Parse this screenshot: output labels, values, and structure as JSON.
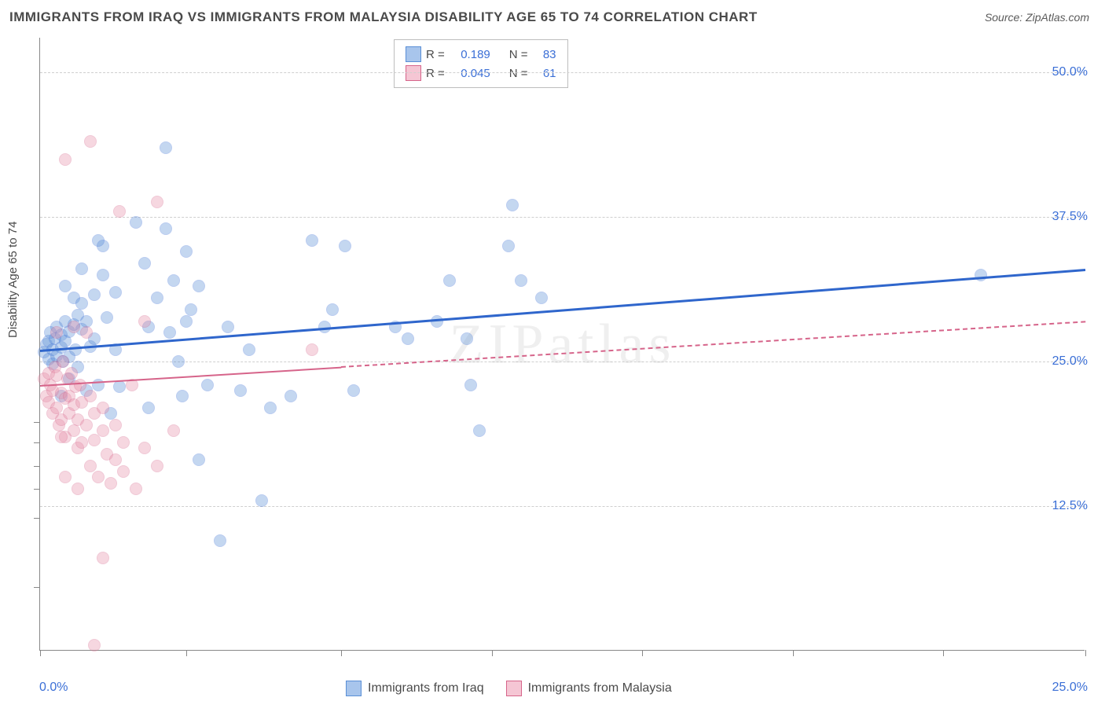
{
  "title": "IMMIGRANTS FROM IRAQ VS IMMIGRANTS FROM MALAYSIA DISABILITY AGE 65 TO 74 CORRELATION CHART",
  "source": "Source: ZipAtlas.com",
  "watermark": "ZIPatlas",
  "ylabel": "Disability Age 65 to 74",
  "chart": {
    "type": "scatter",
    "xlim": [
      0,
      25
    ],
    "ylim": [
      0,
      53
    ],
    "x_tick_positions": [
      0,
      3.5,
      7.2,
      10.8,
      14.4,
      18.0,
      21.6,
      25.0
    ],
    "y_gridlines": [
      12.5,
      25.0,
      37.5,
      50.0
    ],
    "y_tick_marks": [
      5.5,
      11.5,
      14,
      16,
      18,
      19.8
    ],
    "y_tick_labels": [
      {
        "v": 12.5,
        "t": "12.5%"
      },
      {
        "v": 25.0,
        "t": "25.0%"
      },
      {
        "v": 37.5,
        "t": "37.5%"
      },
      {
        "v": 50.0,
        "t": "50.0%"
      }
    ],
    "x_axis_label_left": "0.0%",
    "x_axis_label_right": "25.0%",
    "background_color": "#ffffff",
    "grid_color": "#cfcfcf",
    "point_radius": 8,
    "point_fill_opacity": 0.35,
    "series": [
      {
        "name": "Immigrants from Iraq",
        "color": "#5a8fd6",
        "stroke": "#3b6fd6",
        "R": "0.189",
        "N": "83",
        "trend": {
          "x0": 0,
          "y0": 26.0,
          "x1": 25,
          "y1": 33.0,
          "solid_until_x": 25,
          "color": "#2f66cc",
          "width": 3
        },
        "points": [
          [
            0.1,
            25.8
          ],
          [
            0.15,
            26.5
          ],
          [
            0.2,
            25.2
          ],
          [
            0.2,
            26.8
          ],
          [
            0.25,
            27.5
          ],
          [
            0.3,
            24.8
          ],
          [
            0.3,
            26.0
          ],
          [
            0.35,
            27.0
          ],
          [
            0.4,
            25.5
          ],
          [
            0.4,
            28.0
          ],
          [
            0.5,
            26.2
          ],
          [
            0.5,
            27.3
          ],
          [
            0.55,
            25.0
          ],
          [
            0.6,
            28.5
          ],
          [
            0.6,
            26.8
          ],
          [
            0.7,
            27.6
          ],
          [
            0.7,
            25.4
          ],
          [
            0.8,
            28.2
          ],
          [
            0.8,
            30.5
          ],
          [
            0.85,
            26.0
          ],
          [
            0.9,
            29.0
          ],
          [
            0.9,
            24.5
          ],
          [
            1.0,
            27.8
          ],
          [
            1.0,
            30.0
          ],
          [
            1.1,
            22.5
          ],
          [
            1.1,
            28.5
          ],
          [
            1.2,
            26.3
          ],
          [
            1.3,
            30.8
          ],
          [
            1.3,
            27.0
          ],
          [
            1.4,
            23.0
          ],
          [
            1.5,
            32.5
          ],
          [
            1.5,
            35.0
          ],
          [
            1.6,
            28.8
          ],
          [
            1.7,
            20.5
          ],
          [
            1.8,
            31.0
          ],
          [
            1.8,
            26.0
          ],
          [
            1.9,
            22.8
          ],
          [
            2.3,
            37.0
          ],
          [
            2.5,
            33.5
          ],
          [
            2.6,
            28.0
          ],
          [
            2.6,
            21.0
          ],
          [
            2.8,
            30.5
          ],
          [
            3.0,
            36.5
          ],
          [
            3.0,
            43.5
          ],
          [
            3.1,
            27.5
          ],
          [
            3.2,
            32.0
          ],
          [
            3.3,
            25.0
          ],
          [
            3.4,
            22.0
          ],
          [
            3.5,
            34.5
          ],
          [
            3.5,
            28.5
          ],
          [
            3.6,
            29.5
          ],
          [
            3.8,
            31.5
          ],
          [
            3.8,
            16.5
          ],
          [
            4.0,
            23.0
          ],
          [
            4.3,
            9.5
          ],
          [
            4.5,
            28.0
          ],
          [
            4.8,
            22.5
          ],
          [
            5.0,
            26.0
          ],
          [
            5.5,
            21.0
          ],
          [
            5.3,
            13.0
          ],
          [
            6.0,
            22.0
          ],
          [
            6.5,
            35.5
          ],
          [
            6.8,
            28.0
          ],
          [
            7.0,
            29.5
          ],
          [
            7.3,
            35.0
          ],
          [
            7.5,
            22.5
          ],
          [
            8.5,
            28.0
          ],
          [
            8.8,
            27.0
          ],
          [
            9.5,
            28.5
          ],
          [
            9.8,
            32.0
          ],
          [
            10.2,
            27.0
          ],
          [
            10.3,
            23.0
          ],
          [
            10.5,
            19.0
          ],
          [
            11.2,
            35.0
          ],
          [
            11.3,
            38.5
          ],
          [
            11.5,
            32.0
          ],
          [
            12.0,
            30.5
          ],
          [
            22.5,
            32.5
          ],
          [
            1.0,
            33.0
          ],
          [
            1.4,
            35.5
          ],
          [
            0.6,
            31.5
          ],
          [
            0.7,
            23.5
          ],
          [
            0.5,
            22.0
          ]
        ]
      },
      {
        "name": "Immigrants from Malaysia",
        "color": "#e78fa8",
        "stroke": "#d6648a",
        "R": "0.045",
        "N": "61",
        "trend": {
          "x0": 0,
          "y0": 23.0,
          "x1": 25,
          "y1": 28.5,
          "solid_until_x": 7.2,
          "color": "#d6648a",
          "width": 2
        },
        "points": [
          [
            0.1,
            23.5
          ],
          [
            0.15,
            22.0
          ],
          [
            0.2,
            24.0
          ],
          [
            0.2,
            21.5
          ],
          [
            0.25,
            23.0
          ],
          [
            0.3,
            22.5
          ],
          [
            0.3,
            20.5
          ],
          [
            0.35,
            24.5
          ],
          [
            0.4,
            21.0
          ],
          [
            0.4,
            23.8
          ],
          [
            0.45,
            19.5
          ],
          [
            0.5,
            22.3
          ],
          [
            0.5,
            20.0
          ],
          [
            0.55,
            25.0
          ],
          [
            0.6,
            21.8
          ],
          [
            0.6,
            18.5
          ],
          [
            0.65,
            23.5
          ],
          [
            0.7,
            20.5
          ],
          [
            0.7,
            22.0
          ],
          [
            0.75,
            24.0
          ],
          [
            0.8,
            19.0
          ],
          [
            0.8,
            21.3
          ],
          [
            0.85,
            22.8
          ],
          [
            0.9,
            17.5
          ],
          [
            0.9,
            20.0
          ],
          [
            0.95,
            23.0
          ],
          [
            1.0,
            18.0
          ],
          [
            1.0,
            21.5
          ],
          [
            1.1,
            19.5
          ],
          [
            1.1,
            27.5
          ],
          [
            1.2,
            22.0
          ],
          [
            1.2,
            16.0
          ],
          [
            1.3,
            20.5
          ],
          [
            1.3,
            18.2
          ],
          [
            1.4,
            15.0
          ],
          [
            1.5,
            19.0
          ],
          [
            1.5,
            21.0
          ],
          [
            1.6,
            17.0
          ],
          [
            1.7,
            14.5
          ],
          [
            1.8,
            19.5
          ],
          [
            1.8,
            16.5
          ],
          [
            1.9,
            38.0
          ],
          [
            2.0,
            18.0
          ],
          [
            2.0,
            15.5
          ],
          [
            2.2,
            23.0
          ],
          [
            2.3,
            14.0
          ],
          [
            2.5,
            17.5
          ],
          [
            2.5,
            28.5
          ],
          [
            2.8,
            16.0
          ],
          [
            2.8,
            38.8
          ],
          [
            3.2,
            19.0
          ],
          [
            0.6,
            42.5
          ],
          [
            1.2,
            44.0
          ],
          [
            0.4,
            27.5
          ],
          [
            0.8,
            28.0
          ],
          [
            1.5,
            8.0
          ],
          [
            1.3,
            0.5
          ],
          [
            0.6,
            15.0
          ],
          [
            0.9,
            14.0
          ],
          [
            6.5,
            26.0
          ],
          [
            0.5,
            18.5
          ]
        ]
      }
    ]
  },
  "bottom_legend": [
    {
      "label": "Immigrants from Iraq",
      "fill": "#a8c5ec",
      "stroke": "#5a8fd6"
    },
    {
      "label": "Immigrants from Malaysia",
      "fill": "#f5c6d4",
      "stroke": "#d6648a"
    }
  ],
  "stats_legend": {
    "rows": [
      {
        "swatch_fill": "#a8c5ec",
        "swatch_stroke": "#5a8fd6",
        "r_label": "R =",
        "r_val": "0.189",
        "n_label": "N =",
        "n_val": "83"
      },
      {
        "swatch_fill": "#f5c6d4",
        "swatch_stroke": "#d6648a",
        "r_label": "R =",
        "r_val": "0.045",
        "n_label": "N =",
        "n_val": "61"
      }
    ]
  }
}
